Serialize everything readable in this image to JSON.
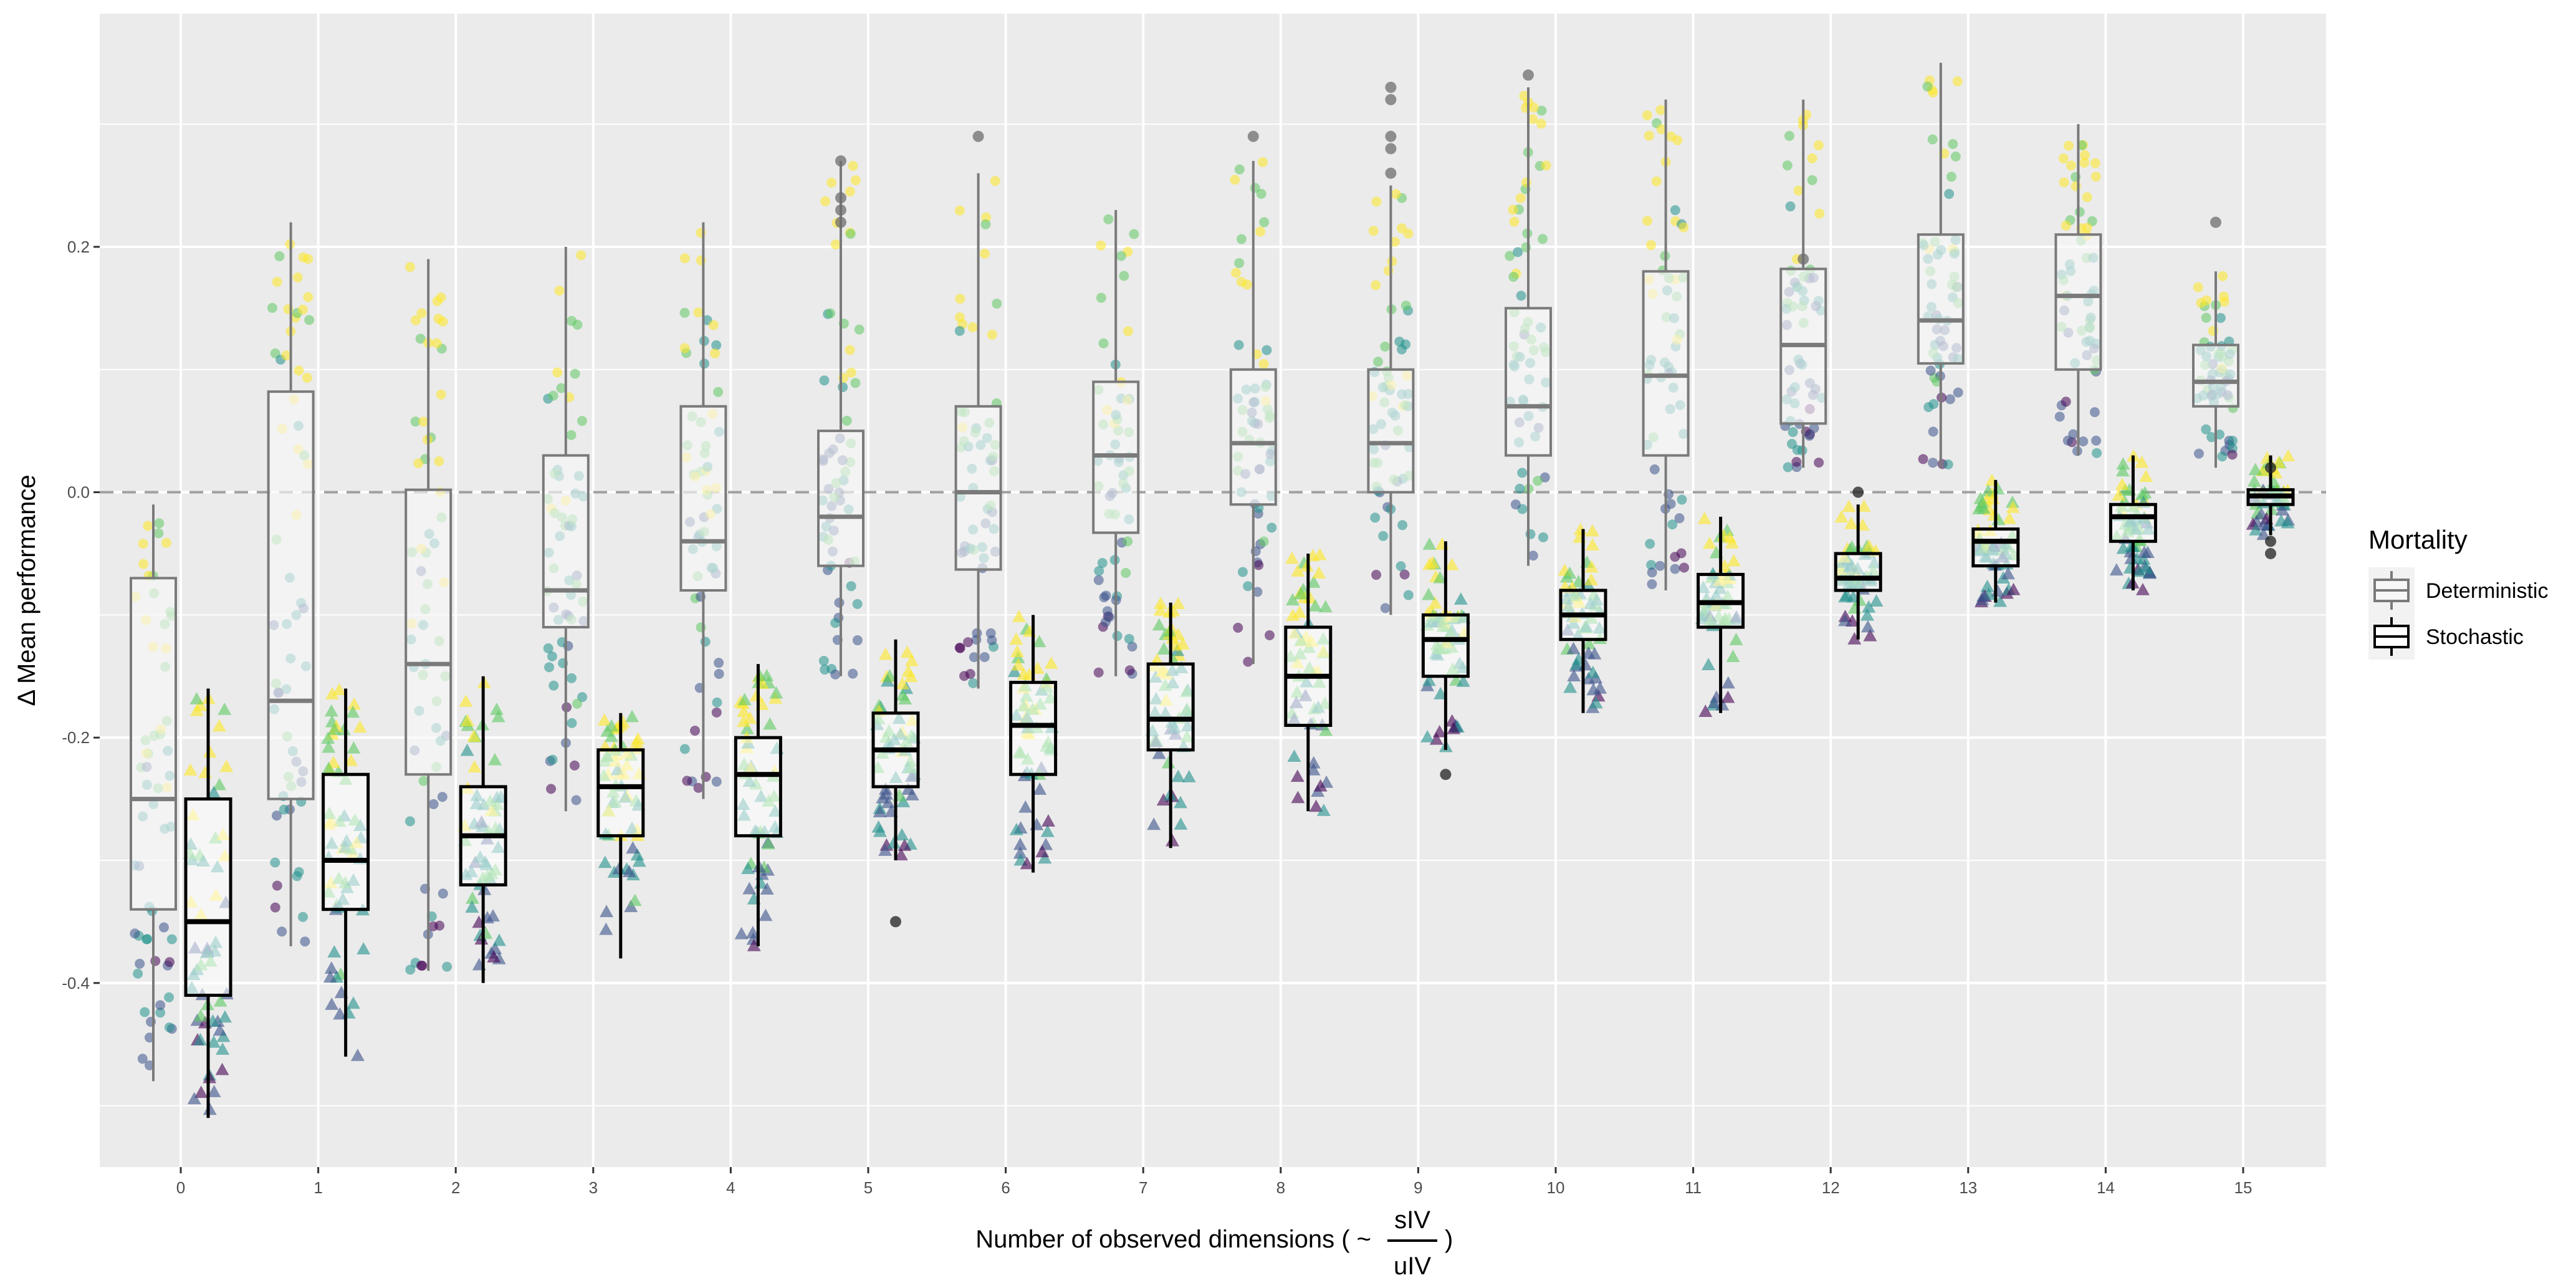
{
  "chart_data": {
    "type": "box",
    "title": "",
    "xlabel": "Number of observed dimensions ( ~",
    "xlabel_fraction": {
      "numerator": "sIV",
      "denominator": "uIV"
    },
    "xlabel_suffix": ")",
    "ylabel": "Δ Mean performance",
    "ylim": [
      -0.55,
      0.39
    ],
    "yticks": [
      -0.4,
      -0.2,
      0.0,
      0.2
    ],
    "ytick_labels": [
      "-0.4",
      "-0.2",
      "0.0",
      "0.2"
    ],
    "reference_line": 0.0,
    "categories": [
      "0",
      "1",
      "2",
      "3",
      "4",
      "5",
      "6",
      "7",
      "8",
      "9",
      "10",
      "11",
      "12",
      "13",
      "14",
      "15"
    ],
    "grid": true,
    "legend": {
      "title": "Mortality",
      "position": "right",
      "entries": [
        "Deterministic",
        "Stochastic"
      ]
    },
    "series": [
      {
        "name": "Deterministic",
        "color": "#7a7a7a",
        "point_shape": "circle",
        "boxes": [
          {
            "x": "0",
            "min": -0.48,
            "q1": -0.34,
            "median": -0.25,
            "q3": -0.07,
            "max": -0.01
          },
          {
            "x": "1",
            "min": -0.37,
            "q1": -0.25,
            "median": -0.17,
            "q3": 0.082,
            "max": 0.22
          },
          {
            "x": "2",
            "min": -0.39,
            "q1": -0.23,
            "median": -0.14,
            "q3": 0.002,
            "max": 0.19
          },
          {
            "x": "3",
            "min": -0.26,
            "q1": -0.11,
            "median": -0.08,
            "q3": 0.03,
            "max": 0.2
          },
          {
            "x": "4",
            "min": -0.25,
            "q1": -0.08,
            "median": -0.04,
            "q3": 0.07,
            "max": 0.22
          },
          {
            "x": "5",
            "min": -0.15,
            "q1": -0.06,
            "median": -0.02,
            "q3": 0.05,
            "max": 0.27
          },
          {
            "x": "6",
            "min": -0.16,
            "q1": -0.063,
            "median": 0.0,
            "q3": 0.07,
            "max": 0.26
          },
          {
            "x": "7",
            "min": -0.15,
            "q1": -0.033,
            "median": 0.03,
            "q3": 0.09,
            "max": 0.23
          },
          {
            "x": "8",
            "min": -0.14,
            "q1": -0.01,
            "median": 0.04,
            "q3": 0.1,
            "max": 0.27
          },
          {
            "x": "9",
            "min": -0.1,
            "q1": 0.0,
            "median": 0.04,
            "q3": 0.1,
            "max": 0.25
          },
          {
            "x": "10",
            "min": -0.06,
            "q1": 0.03,
            "median": 0.07,
            "q3": 0.15,
            "max": 0.33
          },
          {
            "x": "11",
            "min": -0.08,
            "q1": 0.03,
            "median": 0.095,
            "q3": 0.18,
            "max": 0.32
          },
          {
            "x": "12",
            "min": 0.02,
            "q1": 0.056,
            "median": 0.12,
            "q3": 0.182,
            "max": 0.32
          },
          {
            "x": "13",
            "min": 0.02,
            "q1": 0.105,
            "median": 0.14,
            "q3": 0.21,
            "max": 0.35
          },
          {
            "x": "14",
            "min": 0.03,
            "q1": 0.1,
            "median": 0.16,
            "q3": 0.21,
            "max": 0.3
          },
          {
            "x": "15",
            "min": 0.02,
            "q1": 0.07,
            "median": 0.09,
            "q3": 0.12,
            "max": 0.18
          }
        ]
      },
      {
        "name": "Stochastic",
        "color": "#000000",
        "point_shape": "triangle",
        "boxes": [
          {
            "x": "0",
            "min": -0.51,
            "q1": -0.41,
            "median": -0.35,
            "q3": -0.25,
            "max": -0.16
          },
          {
            "x": "1",
            "min": -0.46,
            "q1": -0.34,
            "median": -0.3,
            "q3": -0.23,
            "max": -0.16
          },
          {
            "x": "2",
            "min": -0.4,
            "q1": -0.32,
            "median": -0.28,
            "q3": -0.24,
            "max": -0.15
          },
          {
            "x": "3",
            "min": -0.38,
            "q1": -0.28,
            "median": -0.24,
            "q3": -0.21,
            "max": -0.18
          },
          {
            "x": "4",
            "min": -0.37,
            "q1": -0.28,
            "median": -0.23,
            "q3": -0.2,
            "max": -0.14
          },
          {
            "x": "5",
            "min": -0.3,
            "q1": -0.24,
            "median": -0.21,
            "q3": -0.18,
            "max": -0.12
          },
          {
            "x": "6",
            "min": -0.31,
            "q1": -0.23,
            "median": -0.19,
            "q3": -0.155,
            "max": -0.1
          },
          {
            "x": "7",
            "min": -0.29,
            "q1": -0.21,
            "median": -0.185,
            "q3": -0.14,
            "max": -0.09
          },
          {
            "x": "8",
            "min": -0.26,
            "q1": -0.19,
            "median": -0.15,
            "q3": -0.11,
            "max": -0.05
          },
          {
            "x": "9",
            "min": -0.21,
            "q1": -0.15,
            "median": -0.12,
            "q3": -0.1,
            "max": -0.04
          },
          {
            "x": "10",
            "min": -0.18,
            "q1": -0.12,
            "median": -0.1,
            "q3": -0.08,
            "max": -0.03
          },
          {
            "x": "11",
            "min": -0.18,
            "q1": -0.11,
            "median": -0.09,
            "q3": -0.067,
            "max": -0.02
          },
          {
            "x": "12",
            "min": -0.12,
            "q1": -0.08,
            "median": -0.07,
            "q3": -0.05,
            "max": -0.01
          },
          {
            "x": "13",
            "min": -0.09,
            "q1": -0.06,
            "median": -0.04,
            "q3": -0.03,
            "max": 0.01
          },
          {
            "x": "14",
            "min": -0.08,
            "q1": -0.04,
            "median": -0.02,
            "q3": -0.01,
            "max": 0.03
          },
          {
            "x": "15",
            "min": -0.035,
            "q1": -0.01,
            "median": -0.003,
            "q3": 0.002,
            "max": 0.03
          }
        ]
      }
    ],
    "outliers": [
      {
        "series": "Deterministic",
        "x": "5",
        "y": 0.27
      },
      {
        "series": "Deterministic",
        "x": "5",
        "y": 0.24
      },
      {
        "series": "Deterministic",
        "x": "5",
        "y": 0.23
      },
      {
        "series": "Deterministic",
        "x": "5",
        "y": 0.22
      },
      {
        "series": "Deterministic",
        "x": "6",
        "y": 0.29
      },
      {
        "series": "Deterministic",
        "x": "8",
        "y": 0.29
      },
      {
        "series": "Deterministic",
        "x": "9",
        "y": 0.33
      },
      {
        "series": "Deterministic",
        "x": "9",
        "y": 0.32
      },
      {
        "series": "Deterministic",
        "x": "9",
        "y": 0.29
      },
      {
        "series": "Deterministic",
        "x": "9",
        "y": 0.28
      },
      {
        "series": "Deterministic",
        "x": "9",
        "y": 0.26
      },
      {
        "series": "Deterministic",
        "x": "10",
        "y": 0.34
      },
      {
        "series": "Deterministic",
        "x": "12",
        "y": 0.19
      },
      {
        "series": "Deterministic",
        "x": "15",
        "y": 0.22
      },
      {
        "series": "Stochastic",
        "x": "5",
        "y": -0.35
      },
      {
        "series": "Stochastic",
        "x": "9",
        "y": -0.23
      },
      {
        "series": "Stochastic",
        "x": "12",
        "y": 0.0
      },
      {
        "series": "Stochastic",
        "x": "15",
        "y": 0.02
      },
      {
        "series": "Stochastic",
        "x": "15",
        "y": -0.05
      },
      {
        "series": "Stochastic",
        "x": "15",
        "y": -0.04
      }
    ],
    "jitter_palette": [
      "#440154",
      "#3b528b",
      "#21918c",
      "#5ec962",
      "#fde725"
    ]
  }
}
